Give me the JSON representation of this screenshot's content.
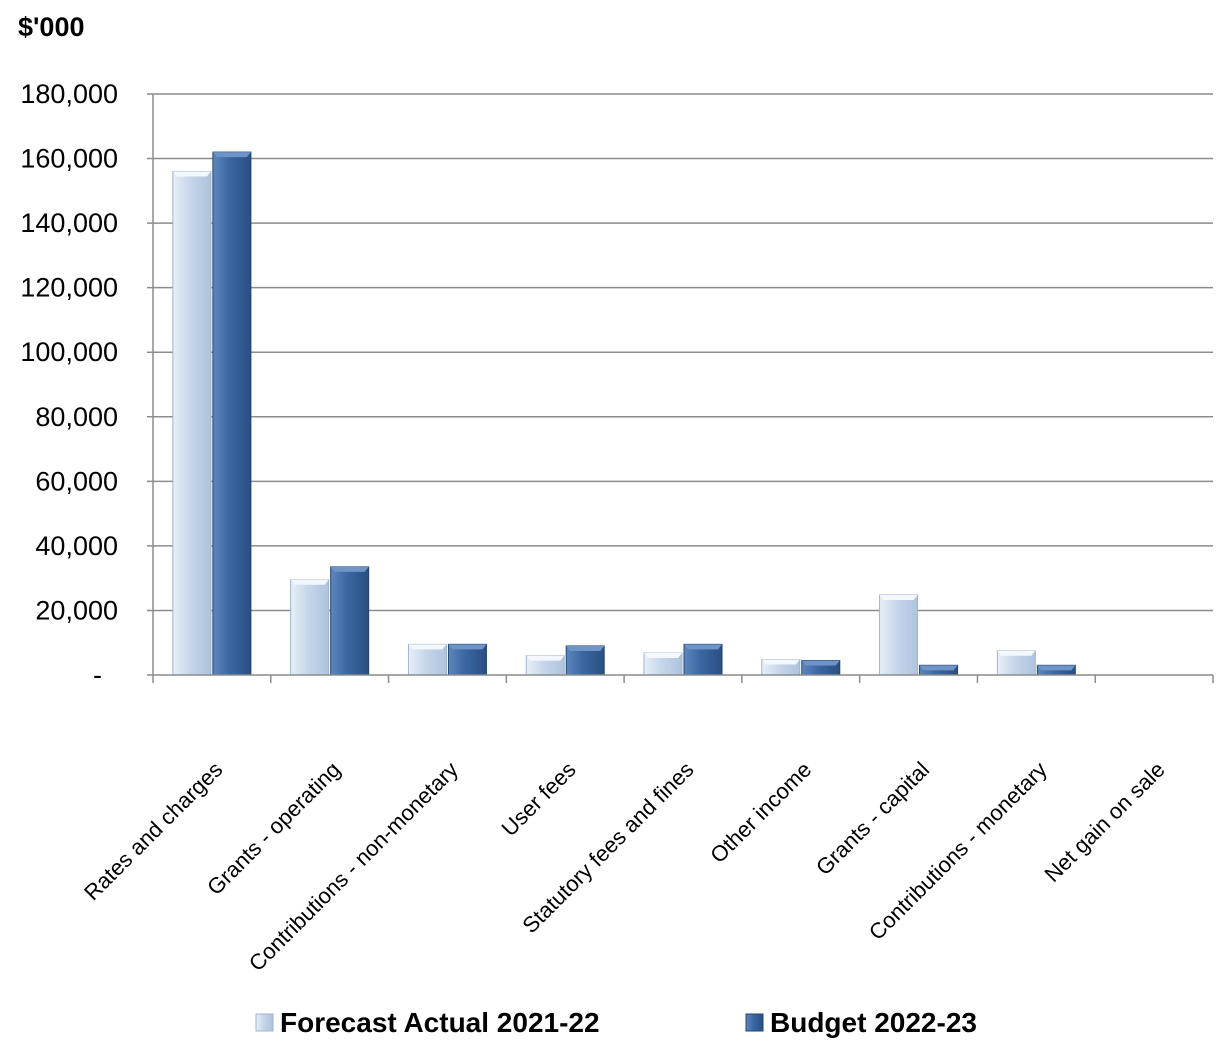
{
  "chart_data": {
    "type": "bar",
    "unit_label": "$'000",
    "categories": [
      "Rates and charges",
      "Grants - operating",
      "Contributions - non-monetary",
      "User fees",
      "Statutory fees and fines",
      "Other income",
      "Grants - capital",
      "Contributions - monetary",
      "Net gain on sale"
    ],
    "series": [
      {
        "name": "Forecast Actual 2021-22",
        "color": "#C6D6EA",
        "values": [
          156000,
          29500,
          9500,
          6000,
          6800,
          4800,
          24800,
          7500,
          0
        ]
      },
      {
        "name": "Budget 2022-23",
        "color": "#3A66A1",
        "values": [
          162000,
          33500,
          9500,
          9000,
          9500,
          4500,
          3000,
          3000,
          0
        ]
      }
    ],
    "ylim": [
      0,
      180000
    ],
    "yticks": [
      0,
      20000,
      40000,
      60000,
      80000,
      100000,
      120000,
      140000,
      160000,
      180000
    ],
    "ytick_labels": [
      "-",
      "20,000",
      "40,000",
      "60,000",
      "80,000",
      "100,000",
      "120,000",
      "140,000",
      "160,000",
      "180,000"
    ],
    "grid": true,
    "legend_position": "bottom"
  }
}
